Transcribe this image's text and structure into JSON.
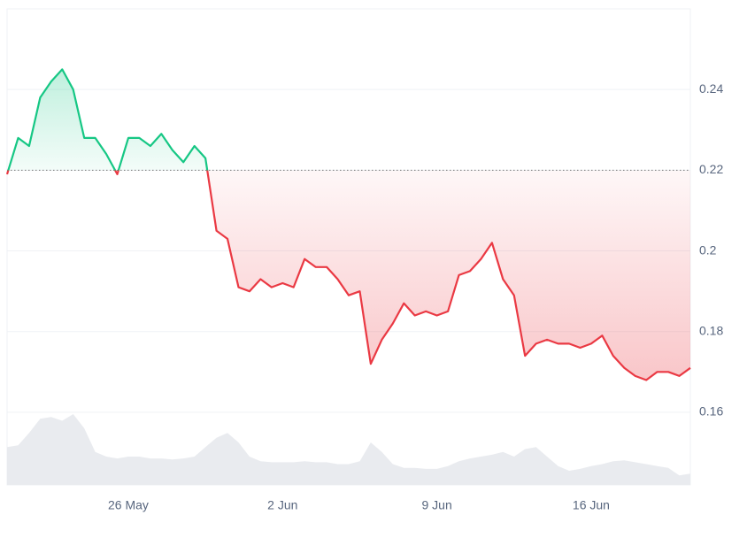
{
  "chart_data": {
    "type": "line",
    "categories": [
      null,
      null,
      null,
      null,
      null,
      null,
      null,
      null,
      null,
      null,
      null,
      "26 May",
      null,
      null,
      null,
      null,
      null,
      null,
      null,
      null,
      null,
      null,
      null,
      null,
      null,
      "2 Jun",
      null,
      null,
      null,
      null,
      null,
      null,
      null,
      null,
      null,
      null,
      null,
      null,
      null,
      "9 Jun",
      null,
      null,
      null,
      null,
      null,
      null,
      null,
      null,
      null,
      null,
      null,
      null,
      null,
      "16 Jun",
      null,
      null,
      null,
      null,
      null,
      null,
      null,
      null,
      null
    ],
    "series": [
      {
        "values": [
          0.219,
          0.228,
          0.226,
          0.238,
          0.242,
          0.245,
          0.24,
          0.228,
          0.228,
          0.224,
          0.219,
          0.228,
          0.228,
          0.226,
          0.229,
          0.225,
          0.222,
          0.226,
          0.223,
          0.205,
          0.203,
          0.191,
          0.19,
          0.193,
          0.191,
          0.192,
          0.191,
          0.198,
          0.196,
          0.196,
          0.193,
          0.189,
          0.19,
          0.172,
          0.178,
          0.182,
          0.187,
          0.184,
          0.185,
          0.184,
          0.185,
          0.194,
          0.195,
          0.198,
          0.202,
          0.193,
          0.189,
          0.174,
          0.177,
          0.178,
          0.177,
          0.177,
          0.176,
          0.177,
          0.179,
          0.174,
          0.171,
          0.169,
          0.168,
          0.17,
          0.17,
          0.169,
          0.171
        ]
      }
    ],
    "volume": [
      40,
      42,
      55,
      70,
      72,
      68,
      75,
      60,
      35,
      30,
      28,
      30,
      30,
      28,
      28,
      27,
      28,
      30,
      40,
      50,
      55,
      45,
      30,
      25,
      24,
      24,
      24,
      25,
      24,
      24,
      22,
      22,
      25,
      45,
      35,
      22,
      18,
      18,
      17,
      17,
      20,
      25,
      28,
      30,
      32,
      35,
      30,
      38,
      40,
      30,
      20,
      15,
      17,
      20,
      22,
      25,
      26,
      24,
      22,
      20,
      18,
      10,
      12
    ],
    "baseline": 0.22,
    "up_color": "#16c784",
    "down_color": "#ea3943",
    "volume_color": "#e9ebef",
    "ylim": [
      0.142,
      0.26
    ],
    "yticks": [
      0.16,
      0.18,
      0.2,
      0.22,
      0.24
    ],
    "grid": true
  }
}
